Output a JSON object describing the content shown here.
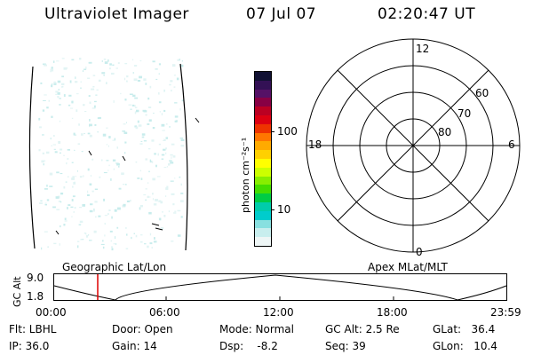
{
  "header": {
    "instrument": "Ultraviolet Imager",
    "date": "07 Jul 07",
    "time": "02:20:47 UT"
  },
  "colorbar": {
    "unit_label": "photon cm⁻²s⁻¹",
    "ticks": [
      "100",
      "10"
    ],
    "colors": [
      "#111133",
      "#331155",
      "#551166",
      "#880044",
      "#bb0022",
      "#dd0011",
      "#ee3300",
      "#ff7700",
      "#ffaa00",
      "#ffd000",
      "#ffff00",
      "#ccff00",
      "#88ee00",
      "#44dd00",
      "#00cc44",
      "#00ccaa",
      "#00cccc",
      "#88e0e0",
      "#c8eeee",
      "#eef6f6"
    ]
  },
  "polar": {
    "mlt_labels": {
      "top": "12",
      "left": "18",
      "right": "6",
      "bottom": "0"
    },
    "lat_labels": [
      "60",
      "70",
      "80"
    ]
  },
  "orbit": {
    "left_title": "Geographic Lat/Lon",
    "right_title": "Apex MLat/MLT",
    "ylabel": "GC Alt",
    "ymax": "9.0",
    "ymin": "1.8",
    "times": [
      "00:00",
      "06:00",
      "12:00",
      "18:00",
      "23:59"
    ]
  },
  "info": {
    "flt": "Flt: LBHL",
    "ip": "IP: 36.0",
    "door": "Door: Open",
    "gain": "Gain: 14",
    "mode": "Mode: Normal",
    "dsp": "Dsp:    -8.2",
    "gcalt": "GC Alt: 2.5 Re",
    "seq": "Seq: 39",
    "glat": "GLat:   36.4",
    "glon": "GLon:   10.4"
  }
}
